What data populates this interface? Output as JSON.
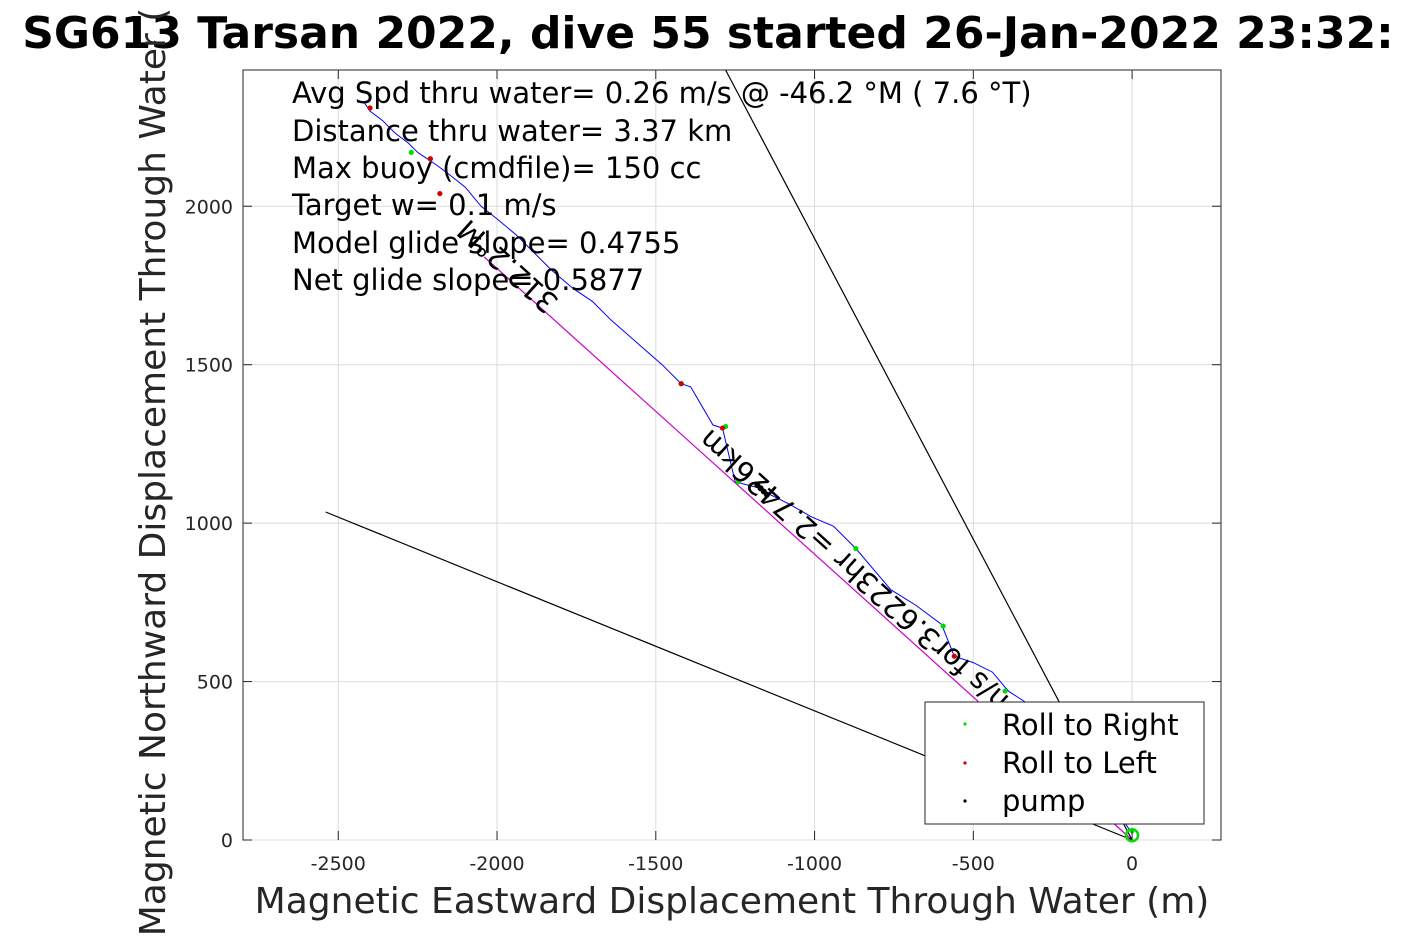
{
  "chart_data": {
    "type": "scatter",
    "title": "SG613 Tarsan 2022, dive 55 started 26-Jan-2022 23:32:",
    "xlabel": "Magnetic Eastward Displacement Through Water (m)",
    "ylabel": "Magnetic Northward Displacement Through Water (",
    "xlim": [
      -2800,
      280
    ],
    "ylim": [
      0,
      2430
    ],
    "x_ticks": [
      -2500,
      -2000,
      -1500,
      -1000,
      -500,
      0
    ],
    "y_ticks": [
      0,
      500,
      1000,
      1500,
      2000
    ],
    "x_tick_labels": [
      "-2500",
      "-2000",
      "-1500",
      "-1000",
      "-500",
      "0"
    ],
    "y_tick_labels": [
      "0",
      "500",
      "1000",
      "1500",
      "2000"
    ],
    "grid": true,
    "annotations": [
      "Avg Spd thru water=  0.26 m/s @ -46.2 °M (  7.6 °T)",
      "Distance thru water=  3.37 km",
      "Max buoy (cmdfile)= 150 cc",
      "Target w= 0.1 m/s",
      "Model glide slope= 0.4755",
      "Net glide slope= 0.5877"
    ],
    "rotated_labels": [
      "312.2°M",
      "m/s for3.6223hr =2.7426km"
    ],
    "legend": {
      "placement": "bottom-right",
      "entries": [
        {
          "label": "Roll to Right",
          "color": "#00dd00"
        },
        {
          "label": "Roll to Left",
          "color": "#cc0000"
        },
        {
          "label": "pump",
          "color": "#000000"
        }
      ]
    },
    "series": [
      {
        "role": "track",
        "color": "#0000ff",
        "x": [
          0,
          -120,
          -250,
          -390,
          -440,
          -500,
          -560,
          -600,
          -680,
          -760,
          -870,
          -940,
          -1010,
          -1080,
          -1140,
          -1170,
          -1210,
          -1250,
          -1290,
          -1320,
          -1390,
          -1420,
          -1480,
          -1560,
          -1640,
          -1700,
          -1760,
          -1830,
          -1890,
          -1940,
          -2000,
          -2050,
          -2100,
          -2150,
          -2190,
          -2220,
          -2250,
          -2280,
          -2320,
          -2360,
          -2400,
          -2420
        ],
        "y": [
          20,
          200,
          380,
          470,
          530,
          560,
          580,
          680,
          740,
          790,
          920,
          990,
          1020,
          1060,
          1090,
          1110,
          1120,
          1130,
          1300,
          1310,
          1430,
          1440,
          1500,
          1570,
          1640,
          1700,
          1740,
          1800,
          1860,
          1910,
          1960,
          2000,
          2060,
          2100,
          2130,
          2150,
          2170,
          2200,
          2230,
          2270,
          2300,
          2330
        ]
      },
      {
        "role": "net-heading",
        "color": "#cc00cc",
        "x": [
          0,
          -2040
        ],
        "y": [
          0,
          1840
        ]
      },
      {
        "role": "current-line",
        "color": "#000000",
        "x": [
          0,
          -1280
        ],
        "y": [
          0,
          2430
        ]
      },
      {
        "role": "current-line-2",
        "color": "#000000",
        "x": [
          0,
          -2540
        ],
        "y": [
          0,
          1035
        ]
      }
    ],
    "events": {
      "roll_right": {
        "color": "#00dd00",
        "x": [
          0,
          -400,
          -595,
          -870,
          -1240,
          -1420,
          -1280,
          -2270,
          -2210
        ],
        "y": [
          30,
          470,
          675,
          920,
          1130,
          1440,
          1305,
          2170,
          2150
        ]
      },
      "roll_left": {
        "color": "#cc0000",
        "x": [
          -560,
          -1290,
          -1420,
          -2210,
          -2400,
          -2180
        ],
        "y": [
          580,
          1300,
          1440,
          2150,
          2310,
          2040
        ]
      },
      "pump": {
        "color": "#000000",
        "x": [
          -1180,
          -1170,
          -1160,
          -1150
        ],
        "y": [
          1120,
          1110,
          1100,
          1090
        ]
      }
    }
  }
}
